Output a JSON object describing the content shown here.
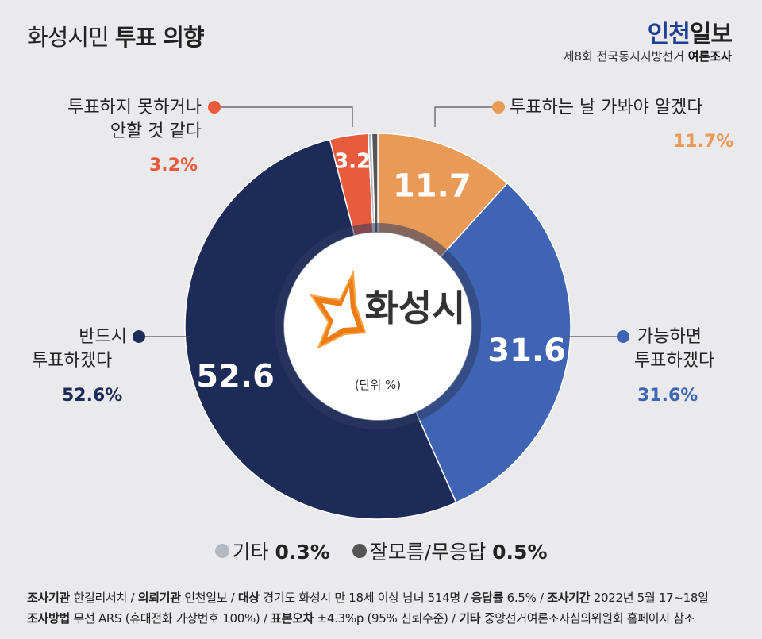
{
  "title": {
    "light": "화성시민",
    "bold": "투표 의향"
  },
  "brand": {
    "part1": "인천",
    "part2": "일보"
  },
  "survey_note": {
    "light": "제8회 전국동시지방선거",
    "bold": "여론조사"
  },
  "center": {
    "city": "화성시",
    "unit": "(단위 %)"
  },
  "colors": {
    "must_vote": "#1c2b57",
    "likely_vote": "#3e64b3",
    "wait_and_see": "#e99a57",
    "unlikely": "#e85c3d",
    "other": "#b3b9c1",
    "dont_know": "#555555",
    "background": "#eaeaec"
  },
  "chart_data": {
    "type": "donut",
    "unit": "%",
    "series": [
      {
        "name": "투표하는 날 가봐야 알겠다",
        "value": 11.7,
        "label": "11.7",
        "pct_label": "11.7%",
        "color": "#e99a57"
      },
      {
        "name": "가능하면 투표하겠다",
        "value": 31.6,
        "label": "31.6",
        "pct_label": "31.6%",
        "color": "#3e64b3"
      },
      {
        "name": "반드시 투표하겠다",
        "value": 52.6,
        "label": "52.6",
        "pct_label": "52.6%",
        "color": "#1c2b57"
      },
      {
        "name": "투표하지 못하거나 안할 것 같다",
        "value": 3.2,
        "label": "3.2",
        "pct_label": "3.2%",
        "color": "#e85c3d"
      },
      {
        "name": "기타",
        "value": 0.3,
        "label": "",
        "pct_label": "0.3%",
        "color": "#b3b9c1"
      },
      {
        "name": "잘모름/무응답",
        "value": 0.5,
        "label": "",
        "pct_label": "0.5%",
        "color": "#555555"
      }
    ]
  },
  "labels": {
    "wait": {
      "text": "투표하는 날 가봐야 알겠다",
      "pct": "11.7%"
    },
    "likely": {
      "line1": "가능하면",
      "line2": "투표하겠다",
      "pct": "31.6%"
    },
    "must": {
      "line1": "반드시",
      "line2": "투표하겠다",
      "pct": "52.6%"
    },
    "unlikely": {
      "line1": "투표하지 못하거나",
      "line2": "안할 것 같다",
      "pct": "3.2%"
    }
  },
  "bottom_legend": {
    "other": {
      "name": "기타",
      "pct": "0.3%"
    },
    "dont_know": {
      "name": "잘모름/무응답",
      "pct": "0.5%"
    }
  },
  "footer": {
    "line1": [
      {
        "k": "조사기관",
        "v": "한길리서치"
      },
      {
        "k": "의뢰기관",
        "v": "인천일보"
      },
      {
        "k": "대상",
        "v": "경기도 화성시 만 18세 이상 남녀 514명"
      },
      {
        "k": "응답률",
        "v": "6.5%"
      },
      {
        "k": "조사기간",
        "v": "2022년 5월 17~18일"
      }
    ],
    "line2": [
      {
        "k": "조사방법",
        "v": "무선 ARS (휴대전화 가상번호 100%)"
      },
      {
        "k": "표본오차",
        "v": "±4.3%p (95% 신뢰수준)"
      },
      {
        "k": "기타",
        "v": "중앙선거여론조사심의위원회 홈페이지 참조"
      }
    ]
  }
}
